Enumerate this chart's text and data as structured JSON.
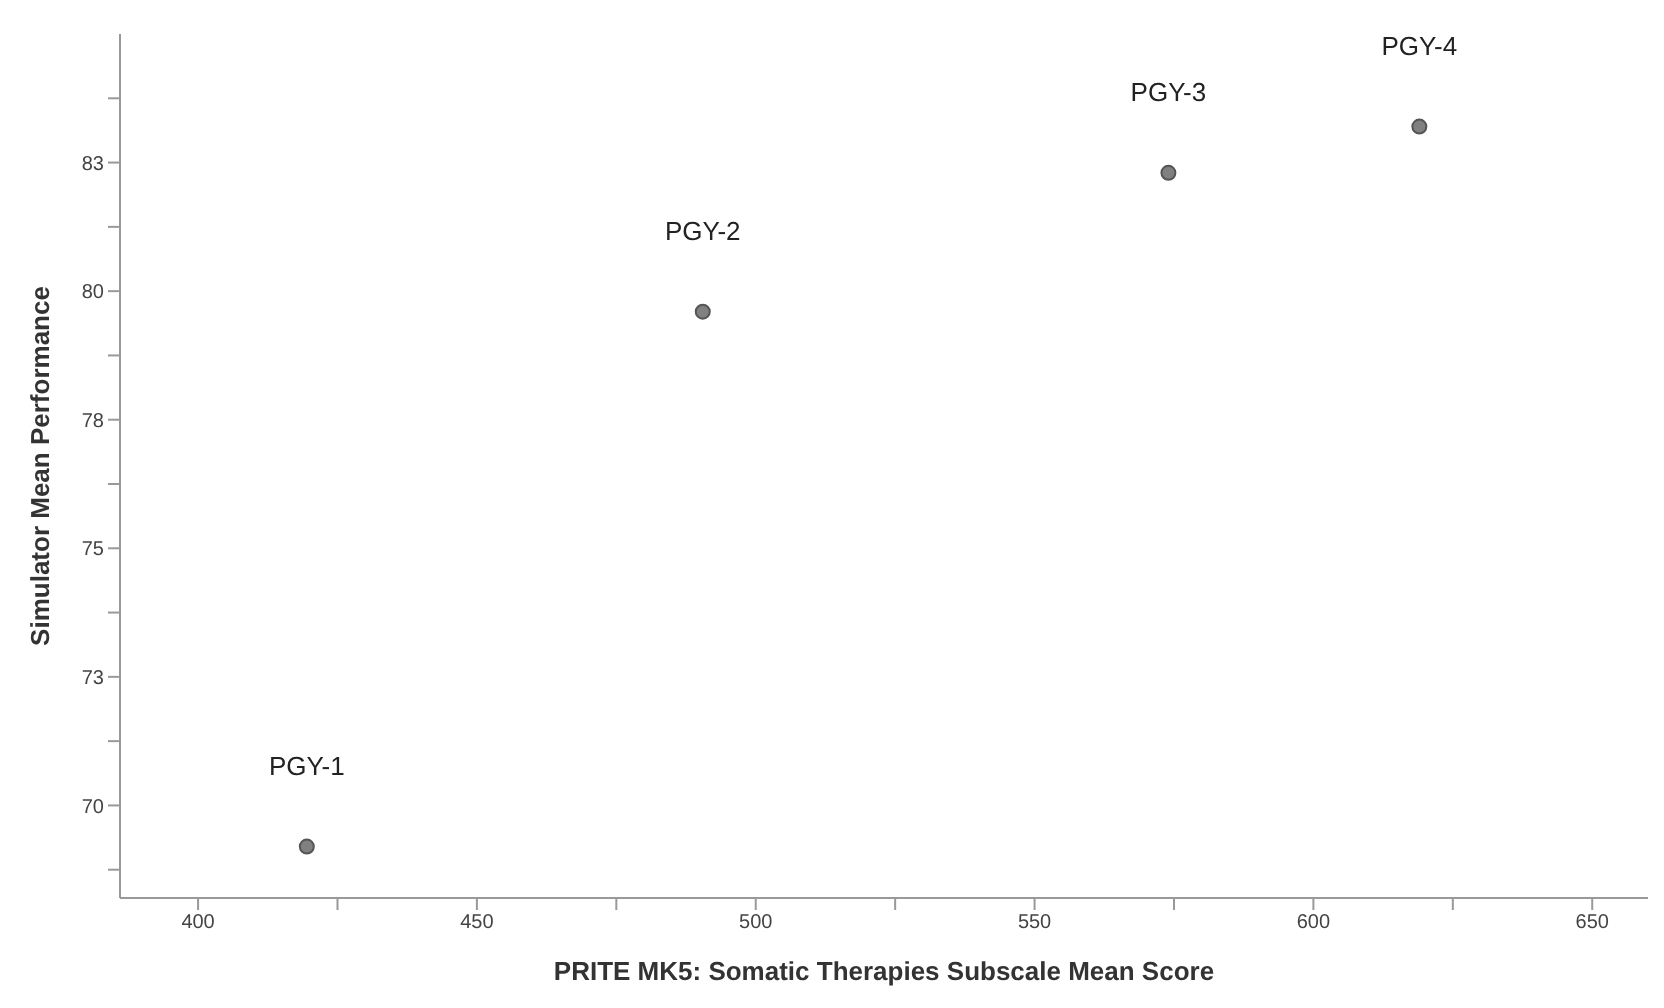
{
  "chart_data": {
    "type": "scatter",
    "xlabel": "PRITE MK5: Somatic Therapies Subscale Mean Score",
    "ylabel": "Simulator Mean Performance",
    "x": [
      419.5,
      490.5,
      574,
      619
    ],
    "series": [
      {
        "color": "#808080",
        "values": [
          69.2,
          79.6,
          82.3,
          83.2
        ]
      }
    ],
    "xlim": [
      386,
      660
    ],
    "xticks": [
      400,
      {
        "value": 425,
        "label": null
      },
      450,
      {
        "value": 475,
        "label": null
      },
      500,
      {
        "value": 525,
        "label": null
      },
      550,
      {
        "value": 575,
        "label": null
      },
      600,
      {
        "value": 625,
        "label": null
      },
      650
    ],
    "ylim": [
      68.2,
      85
    ],
    "yticks": [
      {
        "value": 68.75,
        "label": null
      },
      {
        "value": 70,
        "label": "70"
      },
      {
        "value": 71.25,
        "label": null
      },
      {
        "value": 72.5,
        "label": "73"
      },
      {
        "value": 73.75,
        "label": null
      },
      {
        "value": 75,
        "label": "75"
      },
      {
        "value": 76.25,
        "label": null
      },
      {
        "value": 77.5,
        "label": "78"
      },
      {
        "value": 78.75,
        "label": null
      },
      {
        "value": 80,
        "label": "80"
      },
      {
        "value": 81.25,
        "label": null
      },
      {
        "value": 82.5,
        "label": "83"
      },
      {
        "value": 83.75,
        "label": null
      }
    ],
    "annotations": [
      {
        "text": "PGY-1",
        "x": 419.5,
        "y": 69.2
      },
      {
        "text": "PGY-2",
        "x": 490.5,
        "y": 79.6
      },
      {
        "text": "PGY-3",
        "x": 574,
        "y": 82.3
      },
      {
        "text": "PGY-4",
        "x": 619,
        "y": 83.2
      }
    ],
    "grid": false,
    "legend": false,
    "marker": "circle"
  }
}
